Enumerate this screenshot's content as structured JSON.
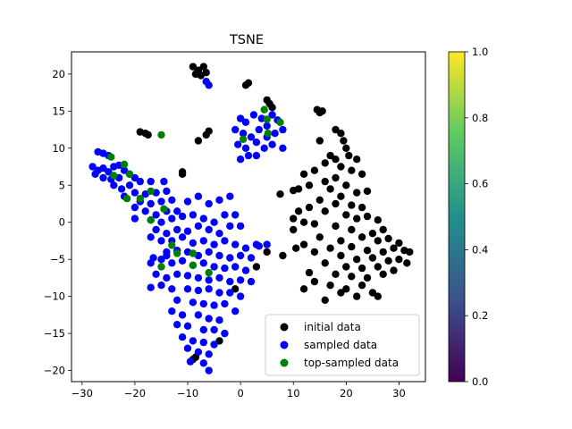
{
  "chart_data": {
    "type": "scatter",
    "title": "TSNE",
    "xlabel": "",
    "ylabel": "",
    "xlim": [
      -32,
      35
    ],
    "ylim": [
      -21.5,
      23
    ],
    "xticks": [
      -30,
      -20,
      -10,
      0,
      10,
      20,
      30
    ],
    "yticks": [
      -20,
      -15,
      -10,
      -5,
      0,
      5,
      10,
      15,
      20
    ],
    "grid": false,
    "legend_position": "lower-right",
    "colorbar": {
      "range": [
        0.0,
        1.0
      ],
      "ticks": [
        "0.0",
        "0.2",
        "0.4",
        "0.6",
        "0.8",
        "1.0"
      ],
      "colormap": "viridis",
      "stops": [
        "#440154",
        "#3b528b",
        "#21908d",
        "#5dc963",
        "#fde725"
      ]
    },
    "series": [
      {
        "name": "initial data",
        "color": "#000000",
        "points": [
          [
            -9,
            21
          ],
          [
            -8,
            20.5
          ],
          [
            -7,
            21
          ],
          [
            -8.5,
            20
          ],
          [
            -6.5,
            20.2
          ],
          [
            -7.5,
            19.8
          ],
          [
            1,
            18.5
          ],
          [
            1.5,
            18.8
          ],
          [
            5,
            16.5
          ],
          [
            5.5,
            16
          ],
          [
            6,
            15.5
          ],
          [
            14.5,
            15.2
          ],
          [
            15,
            14.8
          ],
          [
            15.5,
            15
          ],
          [
            -19,
            12.2
          ],
          [
            -18,
            12
          ],
          [
            -17.5,
            11.8
          ],
          [
            -8,
            11
          ],
          [
            -6,
            12.3
          ],
          [
            -6.5,
            11.8
          ],
          [
            -11,
            6.8
          ],
          [
            -11,
            6.5
          ],
          [
            7.5,
            3.8
          ],
          [
            15,
            11
          ],
          [
            18,
            12.5
          ],
          [
            19,
            12
          ],
          [
            19.5,
            11
          ],
          [
            20,
            10
          ],
          [
            20.5,
            9
          ],
          [
            22,
            8.5
          ],
          [
            17,
            9
          ],
          [
            18,
            8.5
          ],
          [
            16,
            8
          ],
          [
            14,
            7
          ],
          [
            12,
            6.5
          ],
          [
            19,
            7.5
          ],
          [
            21,
            7
          ],
          [
            23,
            6.5
          ],
          [
            18,
            6
          ],
          [
            16,
            5.5
          ],
          [
            20,
            5
          ],
          [
            17,
            4.5
          ],
          [
            13,
            5
          ],
          [
            11,
            4.5
          ],
          [
            10,
            4.3
          ],
          [
            22,
            4
          ],
          [
            24,
            4.2
          ],
          [
            19,
            3.5
          ],
          [
            15,
            3
          ],
          [
            18,
            2.5
          ],
          [
            21,
            2.3
          ],
          [
            23,
            2
          ],
          [
            13,
            2
          ],
          [
            16,
            1.5
          ],
          [
            11,
            1.5
          ],
          [
            20,
            1
          ],
          [
            22,
            0.5
          ],
          [
            24,
            0.8
          ],
          [
            26,
            0.3
          ],
          [
            10,
            0.5
          ],
          [
            12,
            0
          ],
          [
            14,
            -0.2
          ],
          [
            18,
            -0.5
          ],
          [
            21,
            -1
          ],
          [
            25,
            -1.5
          ],
          [
            27,
            -1
          ],
          [
            10,
            -1
          ],
          [
            15,
            -2
          ],
          [
            19,
            -2.5
          ],
          [
            23,
            -2
          ],
          [
            26,
            -2.5
          ],
          [
            28,
            -2.2
          ],
          [
            30,
            -2.8
          ],
          [
            12,
            -3
          ],
          [
            17,
            -3.5
          ],
          [
            21,
            -3.3
          ],
          [
            24,
            -3.8
          ],
          [
            27,
            -4
          ],
          [
            29,
            -3.5
          ],
          [
            31,
            -3.8
          ],
          [
            32,
            -4
          ],
          [
            10.5,
            -3.5
          ],
          [
            14,
            -4
          ],
          [
            19,
            -4.5
          ],
          [
            22,
            -5
          ],
          [
            25,
            -4.8
          ],
          [
            28,
            -5.2
          ],
          [
            30,
            -5
          ],
          [
            31.5,
            -5.5
          ],
          [
            16,
            -5.5
          ],
          [
            20,
            -6
          ],
          [
            23,
            -6.2
          ],
          [
            26,
            -6
          ],
          [
            29,
            -6.5
          ],
          [
            13,
            -6.8
          ],
          [
            18,
            -7
          ],
          [
            21,
            -7.3
          ],
          [
            24,
            -7.5
          ],
          [
            27,
            -7
          ],
          [
            14,
            -8
          ],
          [
            17,
            -8.5
          ],
          [
            20,
            -9
          ],
          [
            23,
            -8.5
          ],
          [
            25,
            -9.5
          ],
          [
            12,
            -9
          ],
          [
            19,
            -9.5
          ],
          [
            22,
            -10
          ],
          [
            26,
            -10
          ],
          [
            16,
            -10.5
          ],
          [
            8,
            -4.5
          ],
          [
            5,
            -4
          ],
          [
            3,
            -6
          ],
          [
            -4,
            -16
          ],
          [
            -9,
            -18.5
          ],
          [
            -8.5,
            -18.2
          ],
          [
            -1,
            -9
          ]
        ]
      },
      {
        "name": "sampled data",
        "color": "#0000ff",
        "points": [
          [
            -6.5,
            19
          ],
          [
            -6,
            18.5
          ],
          [
            0,
            14
          ],
          [
            1,
            13.5
          ],
          [
            2.5,
            14.5
          ],
          [
            4,
            14
          ],
          [
            5,
            13
          ],
          [
            6,
            14.5
          ],
          [
            7,
            13.8
          ],
          [
            -1,
            12.5
          ],
          [
            0.5,
            12
          ],
          [
            2,
            11.5
          ],
          [
            3.5,
            12.5
          ],
          [
            5,
            11.5
          ],
          [
            6.5,
            12
          ],
          [
            8,
            12.5
          ],
          [
            -0.5,
            10.5
          ],
          [
            1,
            10
          ],
          [
            3,
            10.8
          ],
          [
            4.5,
            10
          ],
          [
            6,
            10.5
          ],
          [
            8,
            10
          ],
          [
            1.5,
            9
          ],
          [
            3,
            9
          ],
          [
            0,
            8.5
          ],
          [
            -27,
            9.5
          ],
          [
            -26,
            9.3
          ],
          [
            -25,
            9
          ],
          [
            -28,
            7.5
          ],
          [
            -27,
            7
          ],
          [
            -26,
            7.3
          ],
          [
            -25,
            6.8
          ],
          [
            -24,
            7.5
          ],
          [
            -23,
            7.7
          ],
          [
            -22,
            7
          ],
          [
            -27.5,
            6.5
          ],
          [
            -26,
            6
          ],
          [
            -24.5,
            5.8
          ],
          [
            -23,
            6
          ],
          [
            -21,
            6.5
          ],
          [
            -20,
            6
          ],
          [
            -24,
            5
          ],
          [
            -22.5,
            4.5
          ],
          [
            -21,
            5
          ],
          [
            -19,
            5.5
          ],
          [
            -17,
            5.5
          ],
          [
            -14.5,
            5.5
          ],
          [
            -20,
            4
          ],
          [
            -18,
            3.8
          ],
          [
            -16,
            4
          ],
          [
            -14,
            4.2
          ],
          [
            -22,
            3.5
          ],
          [
            -19,
            2.8
          ],
          [
            -17,
            2.5
          ],
          [
            -15,
            2.8
          ],
          [
            -13,
            3
          ],
          [
            -10,
            2.8
          ],
          [
            -20,
            2
          ],
          [
            -18,
            1.5
          ],
          [
            -16,
            1
          ],
          [
            -14,
            1.5
          ],
          [
            -12,
            1.5
          ],
          [
            -8,
            3.5
          ],
          [
            -6,
            2.5
          ],
          [
            -4,
            3
          ],
          [
            -2,
            3.5
          ],
          [
            -20,
            0.5
          ],
          [
            -17,
            0.3
          ],
          [
            -15,
            0
          ],
          [
            -13,
            0.5
          ],
          [
            -11,
            0.8
          ],
          [
            -9,
            1
          ],
          [
            -7,
            0.5
          ],
          [
            -5,
            0
          ],
          [
            -3,
            1
          ],
          [
            -1,
            1
          ],
          [
            -16,
            -1
          ],
          [
            -14,
            -1.5
          ],
          [
            -12,
            -1
          ],
          [
            -10,
            -1.2
          ],
          [
            -8,
            -0.5
          ],
          [
            -6,
            -1
          ],
          [
            -4,
            -1.5
          ],
          [
            -2,
            -0.5
          ],
          [
            0,
            -0.5
          ],
          [
            -17,
            -2
          ],
          [
            -15,
            -2.5
          ],
          [
            -13,
            -2.5
          ],
          [
            -11,
            -2
          ],
          [
            -9,
            -2.8
          ],
          [
            -7,
            -2.5
          ],
          [
            -5,
            -3
          ],
          [
            -3,
            -2.5
          ],
          [
            -1,
            -3
          ],
          [
            1,
            -3.5
          ],
          [
            3,
            -3
          ],
          [
            5,
            -3
          ],
          [
            -14,
            -4
          ],
          [
            -12,
            -3.8
          ],
          [
            -10,
            -4
          ],
          [
            -8,
            -4.5
          ],
          [
            -6,
            -4
          ],
          [
            -4,
            -4.5
          ],
          [
            -2,
            -4.8
          ],
          [
            0,
            -4.5
          ],
          [
            2,
            -4.8
          ],
          [
            -17,
            -5.5
          ],
          [
            -15,
            -5
          ],
          [
            -13,
            -5.5
          ],
          [
            -11,
            -5.2
          ],
          [
            -9,
            -5.8
          ],
          [
            -7,
            -5.5
          ],
          [
            -5,
            -6
          ],
          [
            -3,
            -6.2
          ],
          [
            -1,
            -6
          ],
          [
            1,
            -6.5
          ],
          [
            -16,
            -7
          ],
          [
            -14,
            -7.5
          ],
          [
            -12,
            -7
          ],
          [
            -10,
            -7.2
          ],
          [
            -8,
            -7.5
          ],
          [
            -6,
            -7.8
          ],
          [
            -4,
            -7.5
          ],
          [
            -2,
            -8
          ],
          [
            0,
            -7.8
          ],
          [
            2,
            -8
          ],
          [
            -15,
            -8.5
          ],
          [
            -13,
            -9
          ],
          [
            -10,
            -9
          ],
          [
            -8,
            -9.2
          ],
          [
            -6,
            -9
          ],
          [
            -4,
            -9.5
          ],
          [
            -2,
            -9.5
          ],
          [
            0,
            -10
          ],
          [
            -17,
            -8.8
          ],
          [
            -12,
            -10.5
          ],
          [
            -9,
            -10.8
          ],
          [
            -7,
            -11
          ],
          [
            -5,
            -11.2
          ],
          [
            -3,
            -11
          ],
          [
            -1,
            -12
          ],
          [
            -13,
            -12
          ],
          [
            -11,
            -12.5
          ],
          [
            -8,
            -12.5
          ],
          [
            -6,
            -13
          ],
          [
            -4,
            -13.2
          ],
          [
            -12,
            -13.8
          ],
          [
            -10,
            -14
          ],
          [
            -7,
            -14.5
          ],
          [
            -5,
            -14.5
          ],
          [
            -3,
            -15
          ],
          [
            -11,
            -15.5
          ],
          [
            -9,
            -16
          ],
          [
            -7,
            -16.2
          ],
          [
            -5,
            -16.5
          ],
          [
            -10,
            -17
          ],
          [
            -8,
            -17.5
          ],
          [
            -6,
            -17.8
          ],
          [
            -9.5,
            -18.8
          ],
          [
            -7,
            -19
          ],
          [
            -6,
            -20
          ],
          [
            -14,
            -4.5
          ],
          [
            3.5,
            -3.2
          ],
          [
            -16.5,
            -4.8
          ]
        ]
      },
      {
        "name": "top-sampled data",
        "color": "#008000",
        "points": [
          [
            -15,
            11.8
          ],
          [
            4.5,
            15.2
          ],
          [
            7.5,
            13.5
          ],
          [
            5,
            13.9
          ],
          [
            5.2,
            12
          ],
          [
            0.5,
            11.2
          ],
          [
            -24.5,
            8.8
          ],
          [
            -22,
            7.8
          ],
          [
            -21,
            6.5
          ],
          [
            -24,
            6.3
          ],
          [
            -17,
            4.2
          ],
          [
            -19,
            3.2
          ],
          [
            -21.5,
            3.2
          ],
          [
            -14.5,
            1.8
          ],
          [
            -17,
            0.3
          ],
          [
            -13,
            -3.1
          ],
          [
            -12,
            -4.2
          ],
          [
            -15,
            -6
          ],
          [
            -9,
            -4.2
          ],
          [
            -6,
            -6.8
          ],
          [
            -9,
            -5.8
          ]
        ]
      }
    ]
  }
}
